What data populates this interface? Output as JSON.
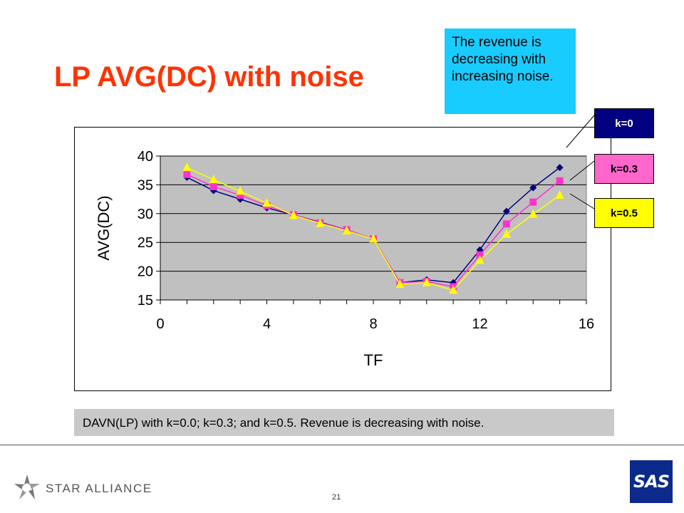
{
  "slide": {
    "title": "LP AVG(DC) with noise",
    "callout": "The revenue is decreasing with increasing noise.",
    "caption": "DAVN(LP) with k=0.0; k=0.3; and k=0.5. Revenue is decreasing with noise.",
    "page_number": "21",
    "footer_logo_text": "STAR ALLIANCE",
    "brand_logo_text": "SAS"
  },
  "colors": {
    "title": "#ff3300",
    "callout_bg": "#19ccff",
    "plot_bg": "#c0c0c0",
    "caption_bg": "#c9c9c9",
    "brand": "#0b2a8c"
  },
  "chart_data": {
    "type": "line",
    "xlabel": "TF",
    "ylabel": "AVG(DC)",
    "xlim": [
      0,
      16
    ],
    "ylim": [
      15,
      40
    ],
    "xticks": [
      0,
      4,
      8,
      12,
      16
    ],
    "yticks": [
      15,
      20,
      25,
      30,
      35,
      40
    ],
    "grid": "horizontal",
    "legend_position": "right",
    "x": [
      1,
      2,
      3,
      4,
      5,
      6,
      7,
      8,
      9,
      10,
      11,
      12,
      13,
      14,
      15
    ],
    "series": [
      {
        "name": "k=0",
        "color": "#000080",
        "marker": "diamond",
        "values": [
          36.3,
          34.0,
          32.5,
          31.0,
          29.8,
          28.5,
          27.2,
          25.6,
          18.0,
          18.5,
          18.0,
          23.7,
          30.4,
          34.5,
          38.0
        ]
      },
      {
        "name": "k=0.3",
        "color": "#ff33cc",
        "marker": "square",
        "values": [
          36.8,
          34.7,
          33.2,
          31.4,
          29.8,
          28.4,
          27.2,
          25.6,
          18.0,
          18.2,
          17.3,
          22.8,
          28.2,
          32.0,
          35.7
        ]
      },
      {
        "name": "k=0.5",
        "color": "#ffff00",
        "marker": "triangle",
        "values": [
          38.0,
          35.9,
          33.9,
          31.8,
          29.7,
          28.3,
          27.0,
          25.6,
          17.7,
          18.0,
          16.7,
          21.9,
          26.4,
          29.9,
          33.2
        ]
      }
    ]
  }
}
